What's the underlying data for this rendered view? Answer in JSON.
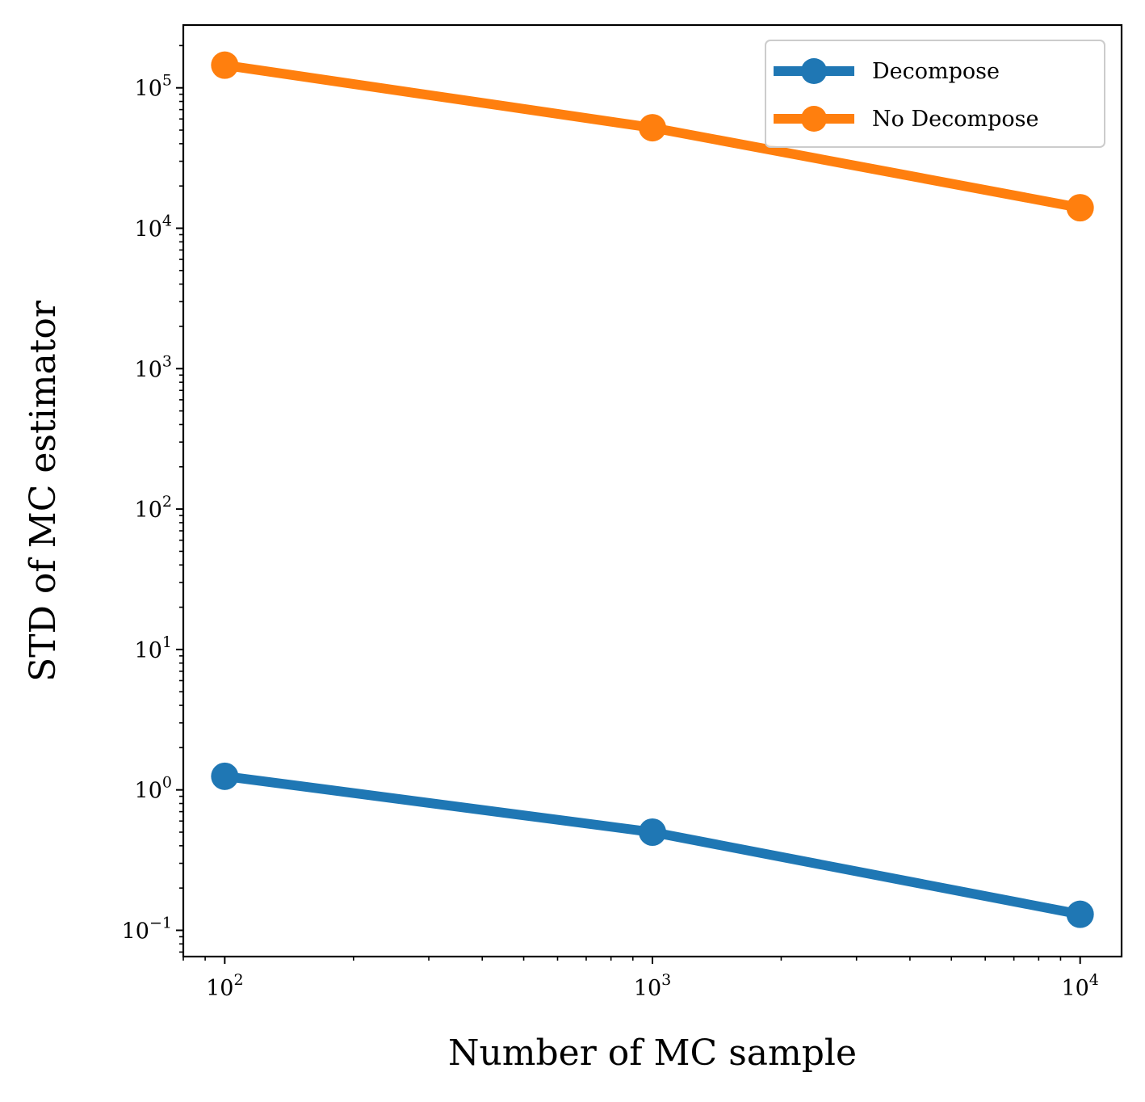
{
  "chart_data": {
    "type": "line",
    "xscale": "log",
    "yscale": "log",
    "xlabel": "Number of MC sample",
    "ylabel": "STD of MC estimator",
    "xlim": [
      80,
      12500
    ],
    "ylim": [
      0.065,
      280000
    ],
    "x": [
      100,
      1000,
      10000
    ],
    "x_ticks": [
      {
        "value": 100,
        "base": "10",
        "exp": "2"
      },
      {
        "value": 1000,
        "base": "10",
        "exp": "3"
      },
      {
        "value": 10000,
        "base": "10",
        "exp": "4"
      }
    ],
    "y_ticks": [
      {
        "value": 0.1,
        "base": "10",
        "exp": "−1"
      },
      {
        "value": 1,
        "base": "10",
        "exp": "0"
      },
      {
        "value": 10,
        "base": "10",
        "exp": "1"
      },
      {
        "value": 100,
        "base": "10",
        "exp": "2"
      },
      {
        "value": 1000,
        "base": "10",
        "exp": "3"
      },
      {
        "value": 10000,
        "base": "10",
        "exp": "4"
      },
      {
        "value": 100000,
        "base": "10",
        "exp": "5"
      }
    ],
    "series": [
      {
        "name": "Decompose",
        "color": "#1f77b4",
        "values": [
          1.25,
          0.5,
          0.13
        ]
      },
      {
        "name": "No Decompose",
        "color": "#ff7f0e",
        "values": [
          145000,
          52000,
          14000
        ]
      }
    ],
    "legend_position": "top-right",
    "grid": false
  }
}
